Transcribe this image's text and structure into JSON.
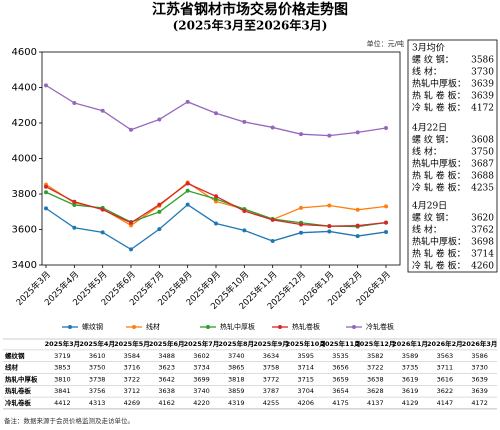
{
  "chart_data": {
    "type": "line",
    "title": "江苏省钢材市场交易价格走势图",
    "subtitle": "(2025年3月至2026年3月)",
    "unit": "单位：元/吨",
    "categories": [
      "2025年3月",
      "2025年4月",
      "2025年5月",
      "2025年6月",
      "2025年7月",
      "2025年8月",
      "2025年9月",
      "2025年10月",
      "2025年11月",
      "2025年12月",
      "2026年1月",
      "2026年2月",
      "2026年3月"
    ],
    "series": [
      {
        "name": "螺纹钢",
        "color": "#1f77b4",
        "values": [
          3719,
          3610,
          3584,
          3488,
          3602,
          3740,
          3634,
          3595,
          3535,
          3582,
          3589,
          3563,
          3586
        ]
      },
      {
        "name": "线材",
        "color": "#ff7f0e",
        "values": [
          3853,
          3750,
          3716,
          3623,
          3734,
          3865,
          3758,
          3714,
          3656,
          3722,
          3735,
          3711,
          3730
        ]
      },
      {
        "name": "热轧中厚板",
        "color": "#2ca02c",
        "values": [
          3810,
          3738,
          3722,
          3642,
          3699,
          3818,
          3772,
          3715,
          3659,
          3638,
          3619,
          3616,
          3639
        ]
      },
      {
        "name": "热轧卷板",
        "color": "#d62728",
        "values": [
          3841,
          3756,
          3712,
          3638,
          3740,
          3859,
          3787,
          3704,
          3654,
          3628,
          3619,
          3622,
          3639
        ]
      },
      {
        "name": "冷轧卷板",
        "color": "#9467bd",
        "values": [
          4412,
          4313,
          4269,
          4162,
          4220,
          4319,
          4255,
          4206,
          4175,
          4137,
          4129,
          4147,
          4172
        ]
      }
    ],
    "ylim": [
      3400,
      4600
    ],
    "yticks": [
      3400,
      3600,
      3800,
      4000,
      4200,
      4400,
      4600
    ],
    "grid": false
  },
  "side_panel": [
    {
      "title": "3月均价",
      "items": [
        {
          "label": "螺 纹 钢：",
          "value": 3586
        },
        {
          "label": "线    材：",
          "value": 3730
        },
        {
          "label": "热轧中厚板：",
          "value": 3639
        },
        {
          "label": "热 轧 卷 板：",
          "value": 3639
        },
        {
          "label": "冷 轧 卷 板：",
          "value": 4172
        }
      ]
    },
    {
      "title": "4月22日",
      "items": [
        {
          "label": "螺 纹 钢：",
          "value": 3608
        },
        {
          "label": "线    材：",
          "value": 3750
        },
        {
          "label": "热轧中厚板：",
          "value": 3687
        },
        {
          "label": "热 轧 卷 板：",
          "value": 3688
        },
        {
          "label": "冷 轧 卷 板：",
          "value": 4235
        }
      ]
    },
    {
      "title": "4月29日",
      "items": [
        {
          "label": "螺 纹 钢：",
          "value": 3620
        },
        {
          "label": "线    材：",
          "value": 3762
        },
        {
          "label": "热轧中厚板：",
          "value": 3698
        },
        {
          "label": "热 轧 卷 板：",
          "value": 3714
        },
        {
          "label": "冷 轧 卷 板：",
          "value": 4260
        }
      ]
    }
  ],
  "note": "备注：数据来源于会员价格监测及走访单位。"
}
